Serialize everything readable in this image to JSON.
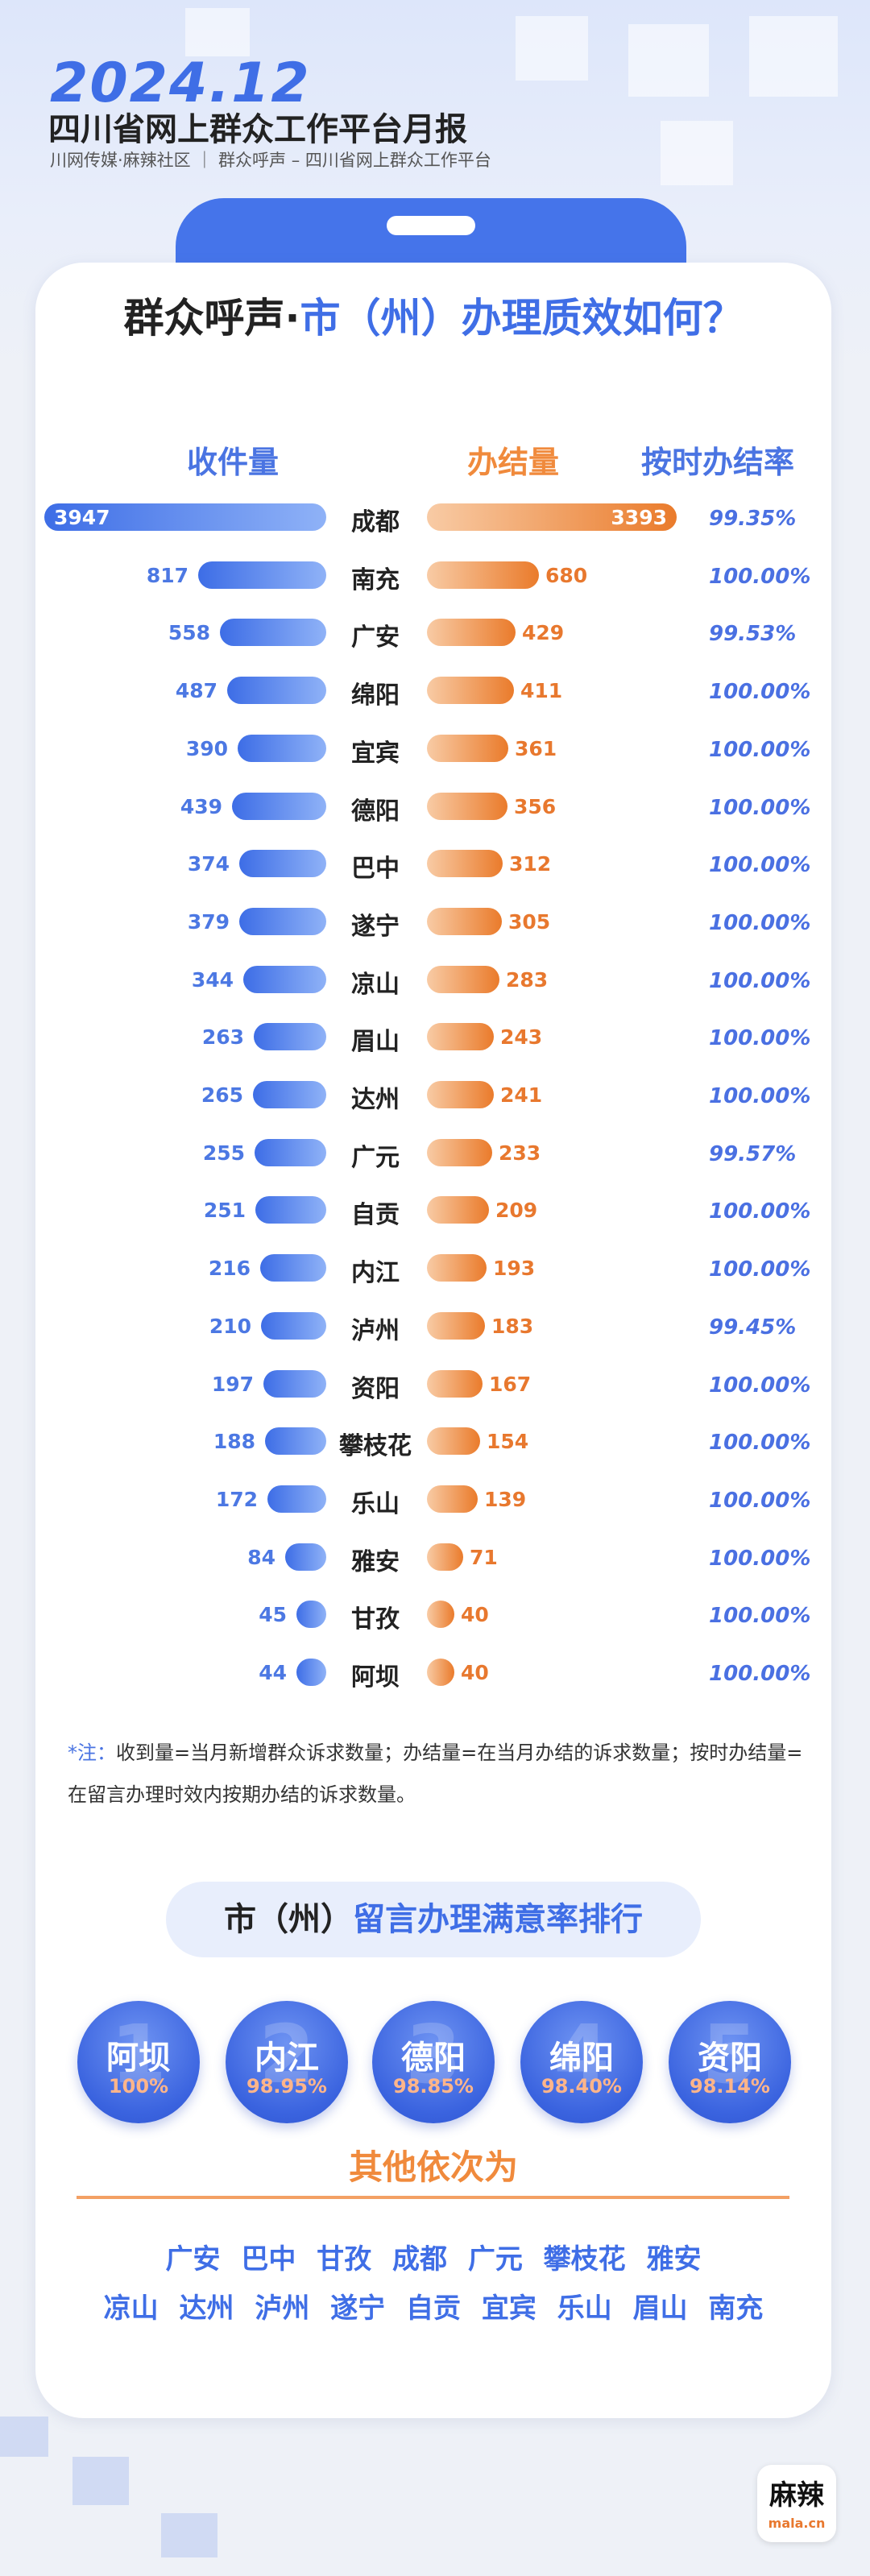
{
  "header": {
    "year": "2024.12",
    "title": "四川省网上群众工作平台月报",
    "subtitle": "川网传媒·麻辣社区 ｜ 群众呼声 – 四川省网上群众工作平台"
  },
  "question": {
    "part1": "群众呼声·",
    "part2": "市（州）办理质效如何？"
  },
  "chart_data": {
    "type": "bar",
    "columns": {
      "received": "收件量",
      "completed": "办结量",
      "rate": "按时办结率"
    },
    "categories": [
      "成都",
      "南充",
      "广安",
      "绵阳",
      "宜宾",
      "德阳",
      "巴中",
      "遂宁",
      "凉山",
      "眉山",
      "达州",
      "广元",
      "自贡",
      "内江",
      "泸州",
      "资阳",
      "攀枝花",
      "乐山",
      "雅安",
      "甘孜",
      "阿坝"
    ],
    "series": [
      {
        "name": "收件量",
        "values": [
          3947,
          817,
          558,
          487,
          390,
          439,
          374,
          379,
          344,
          263,
          265,
          255,
          251,
          216,
          210,
          197,
          188,
          172,
          84,
          45,
          44
        ]
      },
      {
        "name": "办结量",
        "values": [
          3393,
          680,
          429,
          411,
          361,
          356,
          312,
          305,
          283,
          243,
          241,
          233,
          209,
          193,
          183,
          167,
          154,
          139,
          71,
          40,
          40
        ]
      }
    ],
    "rates": [
      "99.35%",
      "100.00%",
      "99.53%",
      "100.00%",
      "100.00%",
      "100.00%",
      "100.00%",
      "100.00%",
      "100.00%",
      "100.00%",
      "100.00%",
      "99.57%",
      "100.00%",
      "100.00%",
      "99.45%",
      "100.00%",
      "100.00%",
      "100.00%",
      "100.00%",
      "100.00%",
      "100.00%"
    ],
    "colors": {
      "received": "#3d6de6",
      "completed": "#ea7b2b"
    }
  },
  "note": {
    "label": "*注：",
    "text": "收到量=当月新增群众诉求数量；办结量=在当月办结的诉求数量；按时办结量=在留言办理时效内按期办结的诉求数量。"
  },
  "satisfaction": {
    "title_a": "市（州）",
    "title_b": "留言办理满意率排行",
    "top": [
      {
        "rank": "1",
        "name": "阿坝",
        "pct": "100%"
      },
      {
        "rank": "2",
        "name": "内江",
        "pct": "98.95%"
      },
      {
        "rank": "3",
        "name": "德阳",
        "pct": "98.85%"
      },
      {
        "rank": "4",
        "name": "绵阳",
        "pct": "98.40%"
      },
      {
        "rank": "5",
        "name": "资阳",
        "pct": "98.14%"
      }
    ],
    "others_title": "其他依次为",
    "others_line1": "广安 巴中 甘孜 成都 广元 攀枝花 雅安",
    "others_line2": "凉山 达州 泸州 遂宁 自贡 宜宾 乐山 眉山 南充"
  },
  "logo": {
    "text": "麻辣",
    "sub": "mala.cn"
  }
}
